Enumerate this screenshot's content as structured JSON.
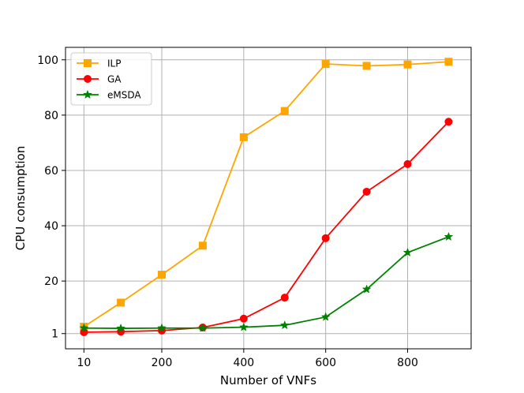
{
  "chart_data": {
    "type": "line",
    "title": "",
    "xlabel": "Number of VNFs",
    "ylabel": "CPU consumption",
    "x": [
      10,
      100,
      200,
      300,
      400,
      500,
      600,
      700,
      800,
      900
    ],
    "xlim": [
      -35,
      955
    ],
    "ylim": [
      -4.5,
      104.5
    ],
    "xticks": [
      10,
      200,
      400,
      600,
      800
    ],
    "xtick_labels": [
      "10",
      "200",
      "400",
      "600",
      "800"
    ],
    "yticks": [
      1,
      20,
      40,
      60,
      80,
      100
    ],
    "ytick_labels": [
      "1",
      "20",
      "40",
      "60",
      "80",
      "100"
    ],
    "grid": true,
    "legend_position": "top-left",
    "series": [
      {
        "name": "ILP",
        "color": "#FFA500",
        "marker": "square",
        "values": [
          3.5,
          12.2,
          22.3,
          32.8,
          72.0,
          81.5,
          98.5,
          97.8,
          98.3,
          99.3
        ]
      },
      {
        "name": "GA",
        "color": "#FF0000",
        "marker": "circle",
        "values": [
          1.5,
          1.7,
          2.1,
          3.2,
          6.4,
          14.0,
          35.5,
          52.3,
          62.3,
          77.6
        ]
      },
      {
        "name": "eMSDA",
        "color": "#008000",
        "marker": "star",
        "values": [
          3.0,
          2.9,
          3.0,
          3.0,
          3.3,
          4.0,
          7.0,
          17.0,
          30.3,
          36.0
        ]
      }
    ]
  }
}
